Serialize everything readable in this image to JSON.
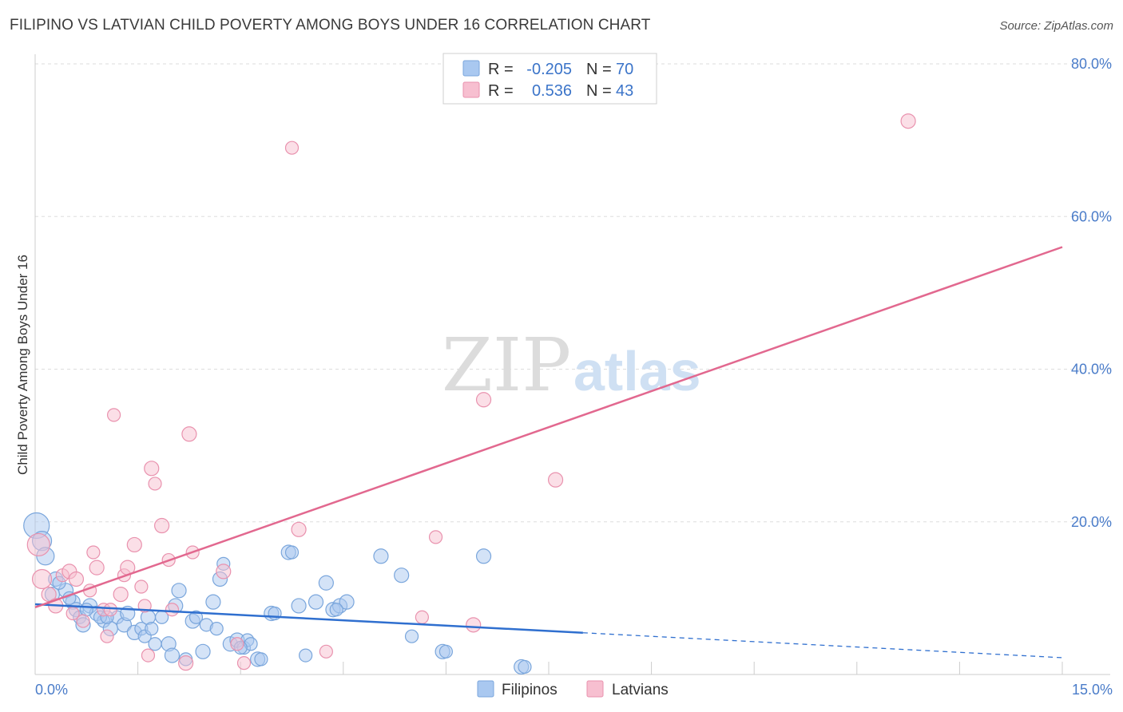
{
  "title": "FILIPINO VS LATVIAN CHILD POVERTY AMONG BOYS UNDER 16 CORRELATION CHART",
  "source": "Source: ZipAtlas.com",
  "watermark": {
    "zip": "ZIP",
    "atlas": "atlas"
  },
  "colors": {
    "filipino_fill": "#a9c8f0",
    "filipino_stroke": "#7aa6dc",
    "filipino_line": "#2f6fcf",
    "latvian_fill": "#f7bfd0",
    "latvian_stroke": "#e992ae",
    "latvian_line": "#e2688f",
    "tick": "#4a7cc9",
    "grid": "#dddddd"
  },
  "legend": {
    "rows": [
      {
        "r_label": "R =",
        "r_value": "-0.205",
        "n_label": "N =",
        "n_value": "70"
      },
      {
        "r_label": "R =",
        "r_value": "0.536",
        "n_label": "N =",
        "n_value": "43"
      }
    ]
  },
  "chart_data": {
    "type": "scatter",
    "title": "FILIPINO VS LATVIAN CHILD POVERTY AMONG BOYS UNDER 16 CORRELATION CHART",
    "xlabel": "",
    "ylabel": "Child Poverty Among Boys Under 16",
    "xlim": [
      0,
      15
    ],
    "ylim": [
      0,
      80
    ],
    "x_tick_labels": [
      {
        "value": 0,
        "label": "0.0%"
      },
      {
        "value": 15,
        "label": "15.0%"
      }
    ],
    "y_tick_labels": [
      {
        "value": 20,
        "label": "20.0%"
      },
      {
        "value": 40,
        "label": "40.0%"
      },
      {
        "value": 60,
        "label": "60.0%"
      },
      {
        "value": 80,
        "label": "80.0%"
      }
    ],
    "series": [
      {
        "name": "Filipinos",
        "r": -0.205,
        "n": 70,
        "trend": {
          "x0": 0,
          "y0": 9.2,
          "x_solid_end": 8.0,
          "x1": 15,
          "y1": 2.2
        },
        "points": [
          [
            0.02,
            19.5,
            16
          ],
          [
            0.1,
            17.5,
            12
          ],
          [
            0.15,
            15.5,
            11
          ],
          [
            0.3,
            12.5,
            9
          ],
          [
            0.45,
            11.0,
            9
          ],
          [
            0.55,
            9.5,
            9
          ],
          [
            0.6,
            8.5,
            9
          ],
          [
            0.65,
            7.5,
            8
          ],
          [
            0.7,
            6.5,
            9
          ],
          [
            0.8,
            9.0,
            9
          ],
          [
            0.9,
            8.0,
            9
          ],
          [
            1.0,
            7.0,
            8
          ],
          [
            1.1,
            6.0,
            9
          ],
          [
            1.2,
            7.5,
            8
          ],
          [
            1.3,
            6.5,
            9
          ],
          [
            1.35,
            8.0,
            9
          ],
          [
            1.45,
            5.5,
            9
          ],
          [
            1.55,
            6.0,
            8
          ],
          [
            1.65,
            7.5,
            9
          ],
          [
            1.75,
            4.0,
            8
          ],
          [
            1.85,
            7.5,
            8
          ],
          [
            1.95,
            4.0,
            9
          ],
          [
            2.0,
            2.5,
            9
          ],
          [
            2.05,
            9.0,
            9
          ],
          [
            2.1,
            11.0,
            9
          ],
          [
            2.2,
            2.0,
            8
          ],
          [
            2.3,
            7.0,
            9
          ],
          [
            2.45,
            3.0,
            9
          ],
          [
            2.5,
            6.5,
            8
          ],
          [
            2.6,
            9.5,
            9
          ],
          [
            2.7,
            12.5,
            9
          ],
          [
            2.75,
            14.5,
            8
          ],
          [
            2.85,
            4.0,
            9
          ],
          [
            2.95,
            4.5,
            9
          ],
          [
            3.05,
            3.5,
            8
          ],
          [
            3.1,
            4.5,
            8
          ],
          [
            3.15,
            4.0,
            8
          ],
          [
            3.25,
            2.0,
            9
          ],
          [
            3.3,
            2.0,
            8
          ],
          [
            3.45,
            8.0,
            9
          ],
          [
            3.5,
            8.0,
            8
          ],
          [
            3.7,
            16.0,
            9
          ],
          [
            3.75,
            16.0,
            8
          ],
          [
            3.85,
            9.0,
            9
          ],
          [
            3.95,
            2.5,
            8
          ],
          [
            4.1,
            9.5,
            9
          ],
          [
            4.25,
            12.0,
            9
          ],
          [
            4.35,
            8.5,
            9
          ],
          [
            4.45,
            9.0,
            9
          ],
          [
            4.55,
            9.5,
            9
          ],
          [
            5.05,
            15.5,
            9
          ],
          [
            5.35,
            13.0,
            9
          ],
          [
            5.5,
            5.0,
            8
          ],
          [
            5.95,
            3.0,
            9
          ],
          [
            6.0,
            3.0,
            8
          ],
          [
            6.55,
            15.5,
            9
          ],
          [
            7.1,
            1.0,
            9
          ],
          [
            7.15,
            1.0,
            8
          ],
          [
            0.25,
            10.5,
            9
          ],
          [
            0.35,
            12.0,
            8
          ],
          [
            0.5,
            10.0,
            8
          ],
          [
            0.75,
            8.5,
            8
          ],
          [
            0.95,
            7.5,
            8
          ],
          [
            1.05,
            7.5,
            8
          ],
          [
            1.6,
            5.0,
            8
          ],
          [
            1.7,
            6.0,
            8
          ],
          [
            2.35,
            7.5,
            8
          ],
          [
            2.65,
            6.0,
            8
          ],
          [
            4.4,
            8.5,
            8
          ],
          [
            3.0,
            3.5,
            8
          ]
        ]
      },
      {
        "name": "Latvians",
        "r": 0.536,
        "n": 43,
        "trend": {
          "x0": 0,
          "y0": 8.8,
          "x1": 15,
          "y1": 56.0
        },
        "points": [
          [
            0.05,
            17.0,
            14
          ],
          [
            0.1,
            12.5,
            12
          ],
          [
            0.2,
            10.5,
            9
          ],
          [
            0.3,
            9.0,
            9
          ],
          [
            0.4,
            13.0,
            8
          ],
          [
            0.5,
            13.5,
            9
          ],
          [
            0.55,
            8.0,
            8
          ],
          [
            0.6,
            12.5,
            9
          ],
          [
            0.7,
            7.0,
            8
          ],
          [
            0.8,
            11.0,
            8
          ],
          [
            0.85,
            16.0,
            8
          ],
          [
            0.9,
            14.0,
            9
          ],
          [
            1.0,
            8.5,
            8
          ],
          [
            1.05,
            5.0,
            8
          ],
          [
            1.1,
            8.5,
            8
          ],
          [
            1.15,
            34.0,
            8
          ],
          [
            1.25,
            10.5,
            9
          ],
          [
            1.3,
            13.0,
            8
          ],
          [
            1.35,
            14.0,
            9
          ],
          [
            1.45,
            17.0,
            9
          ],
          [
            1.55,
            11.5,
            8
          ],
          [
            1.6,
            9.0,
            8
          ],
          [
            1.65,
            2.5,
            8
          ],
          [
            1.7,
            27.0,
            9
          ],
          [
            1.75,
            25.0,
            8
          ],
          [
            1.85,
            19.5,
            9
          ],
          [
            1.95,
            15.0,
            8
          ],
          [
            2.0,
            8.5,
            8
          ],
          [
            2.2,
            1.5,
            9
          ],
          [
            2.25,
            31.5,
            9
          ],
          [
            2.3,
            16.0,
            8
          ],
          [
            2.75,
            13.5,
            9
          ],
          [
            2.95,
            4.0,
            8
          ],
          [
            3.05,
            1.5,
            8
          ],
          [
            3.75,
            69.0,
            8
          ],
          [
            3.85,
            19.0,
            9
          ],
          [
            4.25,
            3.0,
            8
          ],
          [
            5.65,
            7.5,
            8
          ],
          [
            5.85,
            18.0,
            8
          ],
          [
            6.4,
            6.5,
            9
          ],
          [
            6.55,
            36.0,
            9
          ],
          [
            7.6,
            25.5,
            9
          ],
          [
            12.75,
            72.5,
            9
          ]
        ]
      }
    ]
  }
}
